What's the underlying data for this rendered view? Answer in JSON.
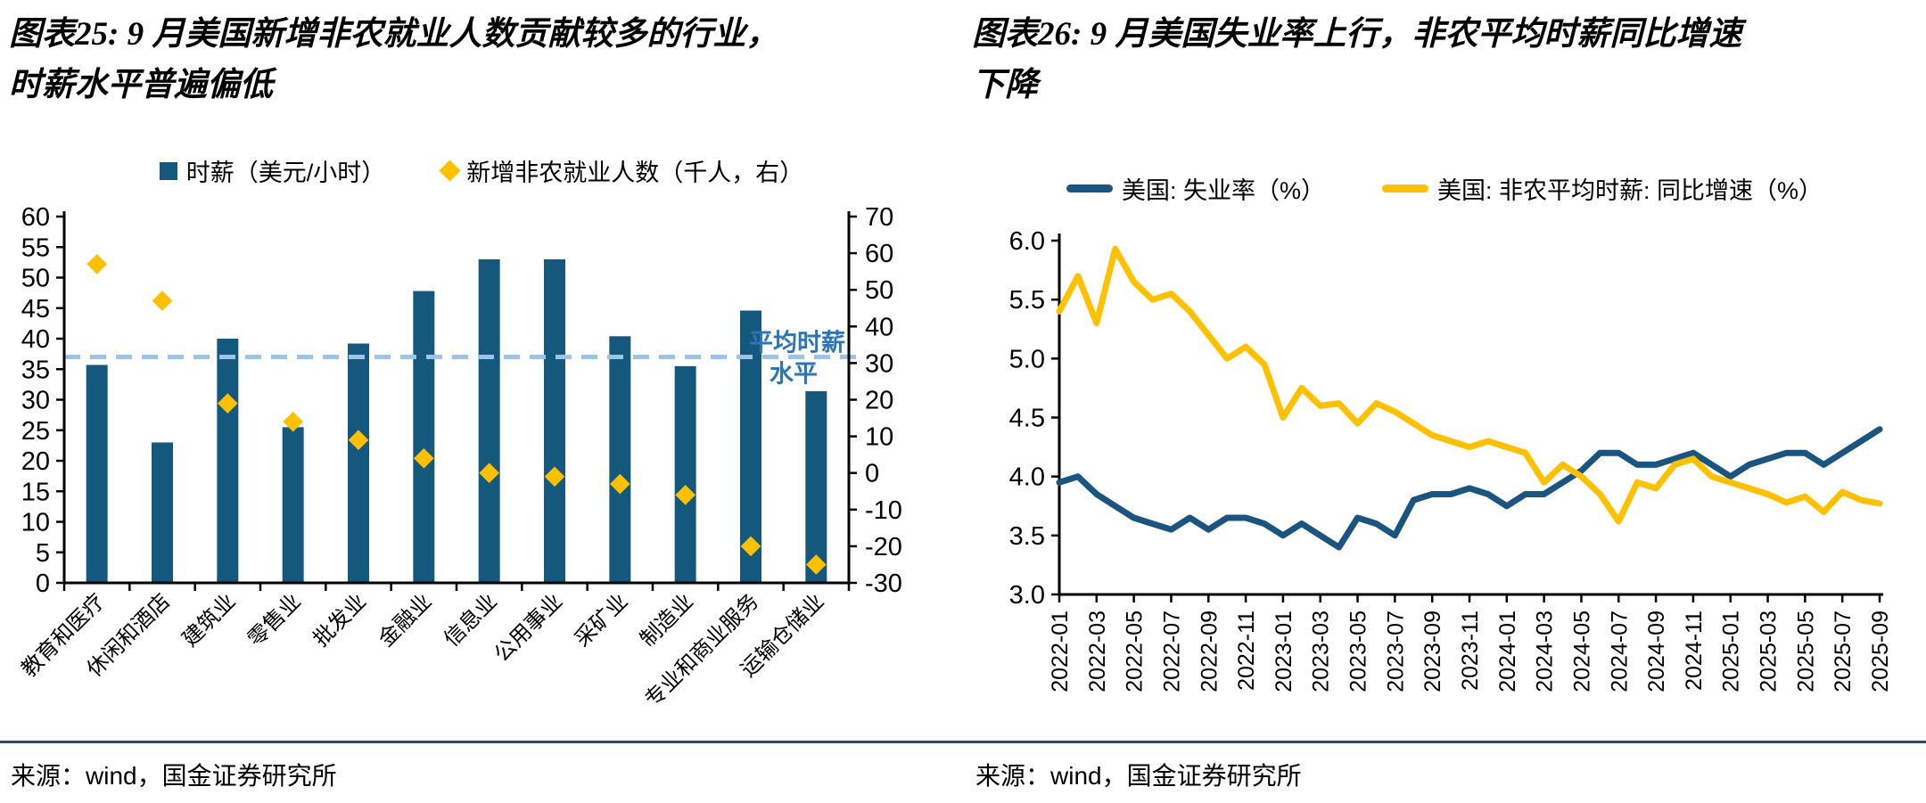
{
  "colors": {
    "navy_bar": "#15587E",
    "navy_line": "#1A5480",
    "yellow": "#FFC000",
    "avg_dash": "#9DC3E6",
    "annotation_blue": "#2E75B6",
    "axis_black": "#000000",
    "rule_navy": "#1F4E79"
  },
  "left_panel": {
    "title_line1": "图表25: 9 月美国新增非农就业人数贡献较多的行业，",
    "title_line2": "时薪水平普遍偏低",
    "source": "来源：wind，国金证券研究所"
  },
  "right_panel": {
    "title_line1": "图表26: 9 月美国失业率上行，非农平均时薪同比增速",
    "title_line2": "下降",
    "source": "来源：wind，国金证券研究所"
  },
  "chart_data": [
    {
      "type": "bar",
      "title": "图表25: 9 月美国新增非农就业人数贡献较多的行业，时薪水平普遍偏低",
      "categories": [
        "教育和医疗",
        "休闲和酒店",
        "建筑业",
        "零售业",
        "批发业",
        "金融业",
        "信息业",
        "公用事业",
        "采矿业",
        "制造业",
        "专业和商业服务",
        "运输仓储业"
      ],
      "series": [
        {
          "name": "时薪（美元/小时）",
          "type": "bar",
          "axis": "left",
          "color": "#15587E",
          "values": [
            35.7,
            23.0,
            40.0,
            25.5,
            39.2,
            47.8,
            53.0,
            53.0,
            40.4,
            35.5,
            44.6,
            31.4
          ]
        },
        {
          "name": "新增非农就业人数（千人，右）",
          "type": "diamond",
          "axis": "right",
          "color": "#FFC000",
          "values": [
            57,
            47,
            19,
            14,
            9,
            4,
            0,
            -1,
            -3,
            -6,
            -20,
            -25
          ]
        }
      ],
      "left_axis": {
        "min": 0,
        "max": 60,
        "step": 5
      },
      "right_axis": {
        "min": -30,
        "max": 70,
        "step": 10
      },
      "avg_line": {
        "value": 37,
        "axis": "left",
        "color": "#9DC3E6",
        "label_line1": "平均时薪",
        "label_line2": "水平",
        "label_color": "#2E75B6"
      },
      "legend_position": "top-center",
      "grid": false
    },
    {
      "type": "line",
      "title": "图表26: 9 月美国失业率上行，非农平均时薪同比增速下降",
      "x": [
        "2022-01",
        "2022-02",
        "2022-03",
        "2022-04",
        "2022-05",
        "2022-06",
        "2022-07",
        "2022-08",
        "2022-09",
        "2022-10",
        "2022-11",
        "2022-12",
        "2023-01",
        "2023-02",
        "2023-03",
        "2023-04",
        "2023-05",
        "2023-06",
        "2023-07",
        "2023-08",
        "2023-09",
        "2023-10",
        "2023-11",
        "2023-12",
        "2024-01",
        "2024-02",
        "2024-03",
        "2024-04",
        "2024-05",
        "2024-06",
        "2024-07",
        "2024-08",
        "2024-09",
        "2024-10",
        "2024-11",
        "2024-12",
        "2025-01",
        "2025-02",
        "2025-03",
        "2025-04",
        "2025-05",
        "2025-06",
        "2025-07",
        "2025-08",
        "2025-09"
      ],
      "tick_every": 2,
      "series": [
        {
          "name": "美国: 失业率（%）",
          "color": "#1A5480",
          "values": [
            3.95,
            4.0,
            3.85,
            3.75,
            3.65,
            3.6,
            3.55,
            3.65,
            3.55,
            3.65,
            3.65,
            3.6,
            3.5,
            3.6,
            3.5,
            3.4,
            3.65,
            3.6,
            3.5,
            3.8,
            3.85,
            3.85,
            3.9,
            3.85,
            3.75,
            3.85,
            3.85,
            3.95,
            4.05,
            4.2,
            4.2,
            4.1,
            4.1,
            4.15,
            4.2,
            4.1,
            4.0,
            4.1,
            4.15,
            4.2,
            4.2,
            4.1,
            4.2,
            4.3,
            4.4
          ]
        },
        {
          "name": "美国: 非农平均时薪: 同比增速（%）",
          "color": "#FFC000",
          "values": [
            5.4,
            5.7,
            5.3,
            5.93,
            5.65,
            5.5,
            5.55,
            5.4,
            5.2,
            5.0,
            5.1,
            4.95,
            4.5,
            4.75,
            4.6,
            4.62,
            4.45,
            4.62,
            4.55,
            4.45,
            4.35,
            4.3,
            4.25,
            4.3,
            4.25,
            4.2,
            3.95,
            4.1,
            4.0,
            3.85,
            3.62,
            3.95,
            3.9,
            4.1,
            4.15,
            4.0,
            3.95,
            3.9,
            3.85,
            3.78,
            3.83,
            3.7,
            3.87,
            3.8,
            3.77
          ]
        }
      ],
      "ylim": [
        3.0,
        6.0
      ],
      "ystep": 0.5,
      "ylabel": "",
      "xlabel": "",
      "grid": false,
      "legend_position": "top-center"
    }
  ]
}
